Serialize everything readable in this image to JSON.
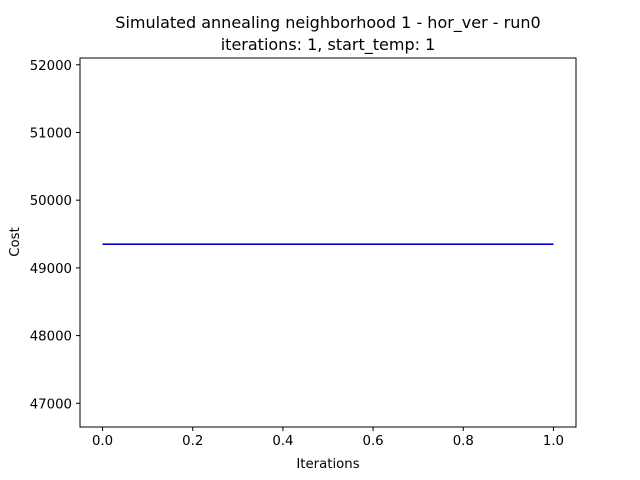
{
  "chart_data": {
    "type": "line",
    "title_line1": "Simulated annealing neighborhood 1 - hor_ver - run0",
    "title_line2": "iterations: 1, start_temp: 1",
    "xlabel": "Iterations",
    "ylabel": "Cost",
    "xlim": [
      -0.05,
      1.05
    ],
    "ylim": [
      46650,
      52100
    ],
    "x_ticks": [
      0.0,
      0.2,
      0.4,
      0.6,
      0.8,
      1.0
    ],
    "x_tick_labels": [
      "0.0",
      "0.2",
      "0.4",
      "0.6",
      "0.8",
      "1.0"
    ],
    "y_ticks": [
      47000,
      48000,
      49000,
      50000,
      51000,
      52000
    ],
    "y_tick_labels": [
      "47000",
      "48000",
      "49000",
      "50000",
      "51000",
      "52000"
    ],
    "grid": false,
    "series": [
      {
        "color": "#0000cc",
        "x": [
          0,
          1
        ],
        "y": [
          49350,
          49350
        ]
      }
    ]
  }
}
